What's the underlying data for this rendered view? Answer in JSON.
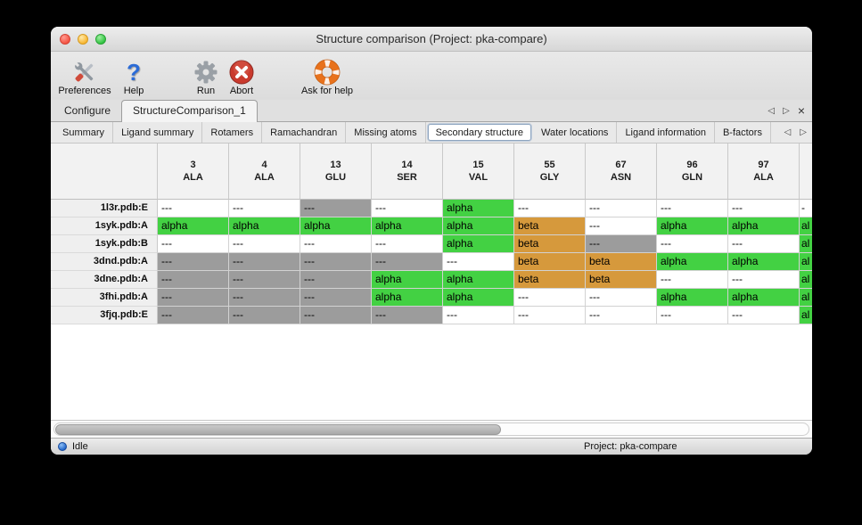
{
  "window": {
    "title": "Structure comparison (Project: pka-compare)"
  },
  "toolbar": {
    "items": [
      {
        "label": "Preferences",
        "icon": "tools-icon"
      },
      {
        "label": "Help",
        "icon": "question-mark-icon"
      },
      {
        "label": "Run",
        "icon": "gear-icon"
      },
      {
        "label": "Abort",
        "icon": "abort-icon"
      },
      {
        "label": "Ask for help",
        "icon": "life-ring-icon"
      }
    ]
  },
  "tabs": {
    "items": [
      {
        "label": "Configure",
        "active": false
      },
      {
        "label": "StructureComparison_1",
        "active": true
      }
    ],
    "nav": {
      "prev": "◁",
      "next": "▷",
      "close": "×"
    }
  },
  "subtabs": {
    "items": [
      "Summary",
      "Ligand summary",
      "Rotamers",
      "Ramachandran",
      "Missing atoms",
      "Secondary structure",
      "Water locations",
      "Ligand information",
      "B-factors"
    ],
    "selected": "Secondary structure",
    "selected_index": 5,
    "nav": {
      "prev": "◁",
      "next": "▷"
    }
  },
  "colors": {
    "alpha": "#43d143",
    "beta": "#d6993c",
    "gap": "#9c9c9c",
    "blank": "#ffffff"
  },
  "table": {
    "columns": [
      {
        "number": "3",
        "residue": "ALA"
      },
      {
        "number": "4",
        "residue": "ALA"
      },
      {
        "number": "13",
        "residue": "GLU"
      },
      {
        "number": "14",
        "residue": "SER"
      },
      {
        "number": "15",
        "residue": "VAL"
      },
      {
        "number": "55",
        "residue": "GLY"
      },
      {
        "number": "67",
        "residue": "ASN"
      },
      {
        "number": "96",
        "residue": "GLN"
      },
      {
        "number": "97",
        "residue": "ALA"
      },
      {
        "number": "",
        "residue": "",
        "clipped": true
      }
    ],
    "rows": [
      {
        "label": "1l3r.pdb:E",
        "cells": [
          {
            "text": "---",
            "type": "blank"
          },
          {
            "text": "---",
            "type": "blank"
          },
          {
            "text": "---",
            "type": "gap"
          },
          {
            "text": "---",
            "type": "blank"
          },
          {
            "text": "alpha",
            "type": "alpha"
          },
          {
            "text": "---",
            "type": "blank"
          },
          {
            "text": "---",
            "type": "blank"
          },
          {
            "text": "---",
            "type": "blank"
          },
          {
            "text": "---",
            "type": "blank"
          },
          {
            "text": "-",
            "type": "blank"
          }
        ]
      },
      {
        "label": "1syk.pdb:A",
        "cells": [
          {
            "text": "alpha",
            "type": "alpha"
          },
          {
            "text": "alpha",
            "type": "alpha"
          },
          {
            "text": "alpha",
            "type": "alpha"
          },
          {
            "text": "alpha",
            "type": "alpha"
          },
          {
            "text": "alpha",
            "type": "alpha"
          },
          {
            "text": "beta",
            "type": "beta"
          },
          {
            "text": "---",
            "type": "blank"
          },
          {
            "text": "alpha",
            "type": "alpha"
          },
          {
            "text": "alpha",
            "type": "alpha"
          },
          {
            "text": "al",
            "type": "alpha"
          }
        ]
      },
      {
        "label": "1syk.pdb:B",
        "cells": [
          {
            "text": "---",
            "type": "blank"
          },
          {
            "text": "---",
            "type": "blank"
          },
          {
            "text": "---",
            "type": "blank"
          },
          {
            "text": "---",
            "type": "blank"
          },
          {
            "text": "alpha",
            "type": "alpha"
          },
          {
            "text": "beta",
            "type": "beta"
          },
          {
            "text": "---",
            "type": "gap"
          },
          {
            "text": "---",
            "type": "blank"
          },
          {
            "text": "---",
            "type": "blank"
          },
          {
            "text": "al",
            "type": "alpha"
          }
        ]
      },
      {
        "label": "3dnd.pdb:A",
        "cells": [
          {
            "text": "---",
            "type": "gap"
          },
          {
            "text": "---",
            "type": "gap"
          },
          {
            "text": "---",
            "type": "gap"
          },
          {
            "text": "---",
            "type": "gap"
          },
          {
            "text": "---",
            "type": "blank"
          },
          {
            "text": "beta",
            "type": "beta"
          },
          {
            "text": "beta",
            "type": "beta"
          },
          {
            "text": "alpha",
            "type": "alpha"
          },
          {
            "text": "alpha",
            "type": "alpha"
          },
          {
            "text": "al",
            "type": "alpha"
          }
        ]
      },
      {
        "label": "3dne.pdb:A",
        "cells": [
          {
            "text": "---",
            "type": "gap"
          },
          {
            "text": "---",
            "type": "gap"
          },
          {
            "text": "---",
            "type": "gap"
          },
          {
            "text": "alpha",
            "type": "alpha"
          },
          {
            "text": "alpha",
            "type": "alpha"
          },
          {
            "text": "beta",
            "type": "beta"
          },
          {
            "text": "beta",
            "type": "beta"
          },
          {
            "text": "---",
            "type": "blank"
          },
          {
            "text": "---",
            "type": "blank"
          },
          {
            "text": "al",
            "type": "alpha"
          }
        ]
      },
      {
        "label": "3fhi.pdb:A",
        "cells": [
          {
            "text": "---",
            "type": "gap"
          },
          {
            "text": "---",
            "type": "gap"
          },
          {
            "text": "---",
            "type": "gap"
          },
          {
            "text": "alpha",
            "type": "alpha"
          },
          {
            "text": "alpha",
            "type": "alpha"
          },
          {
            "text": "---",
            "type": "blank"
          },
          {
            "text": "---",
            "type": "blank"
          },
          {
            "text": "alpha",
            "type": "alpha"
          },
          {
            "text": "alpha",
            "type": "alpha"
          },
          {
            "text": "al",
            "type": "alpha"
          }
        ]
      },
      {
        "label": "3fjq.pdb:E",
        "cells": [
          {
            "text": "---",
            "type": "gap"
          },
          {
            "text": "---",
            "type": "gap"
          },
          {
            "text": "---",
            "type": "gap"
          },
          {
            "text": "---",
            "type": "gap"
          },
          {
            "text": "---",
            "type": "blank"
          },
          {
            "text": "---",
            "type": "blank"
          },
          {
            "text": "---",
            "type": "blank"
          },
          {
            "text": "---",
            "type": "blank"
          },
          {
            "text": "---",
            "type": "blank"
          },
          {
            "text": "al",
            "type": "alpha"
          }
        ]
      }
    ]
  },
  "statusbar": {
    "status": "Idle",
    "project": "Project: pka-compare"
  }
}
